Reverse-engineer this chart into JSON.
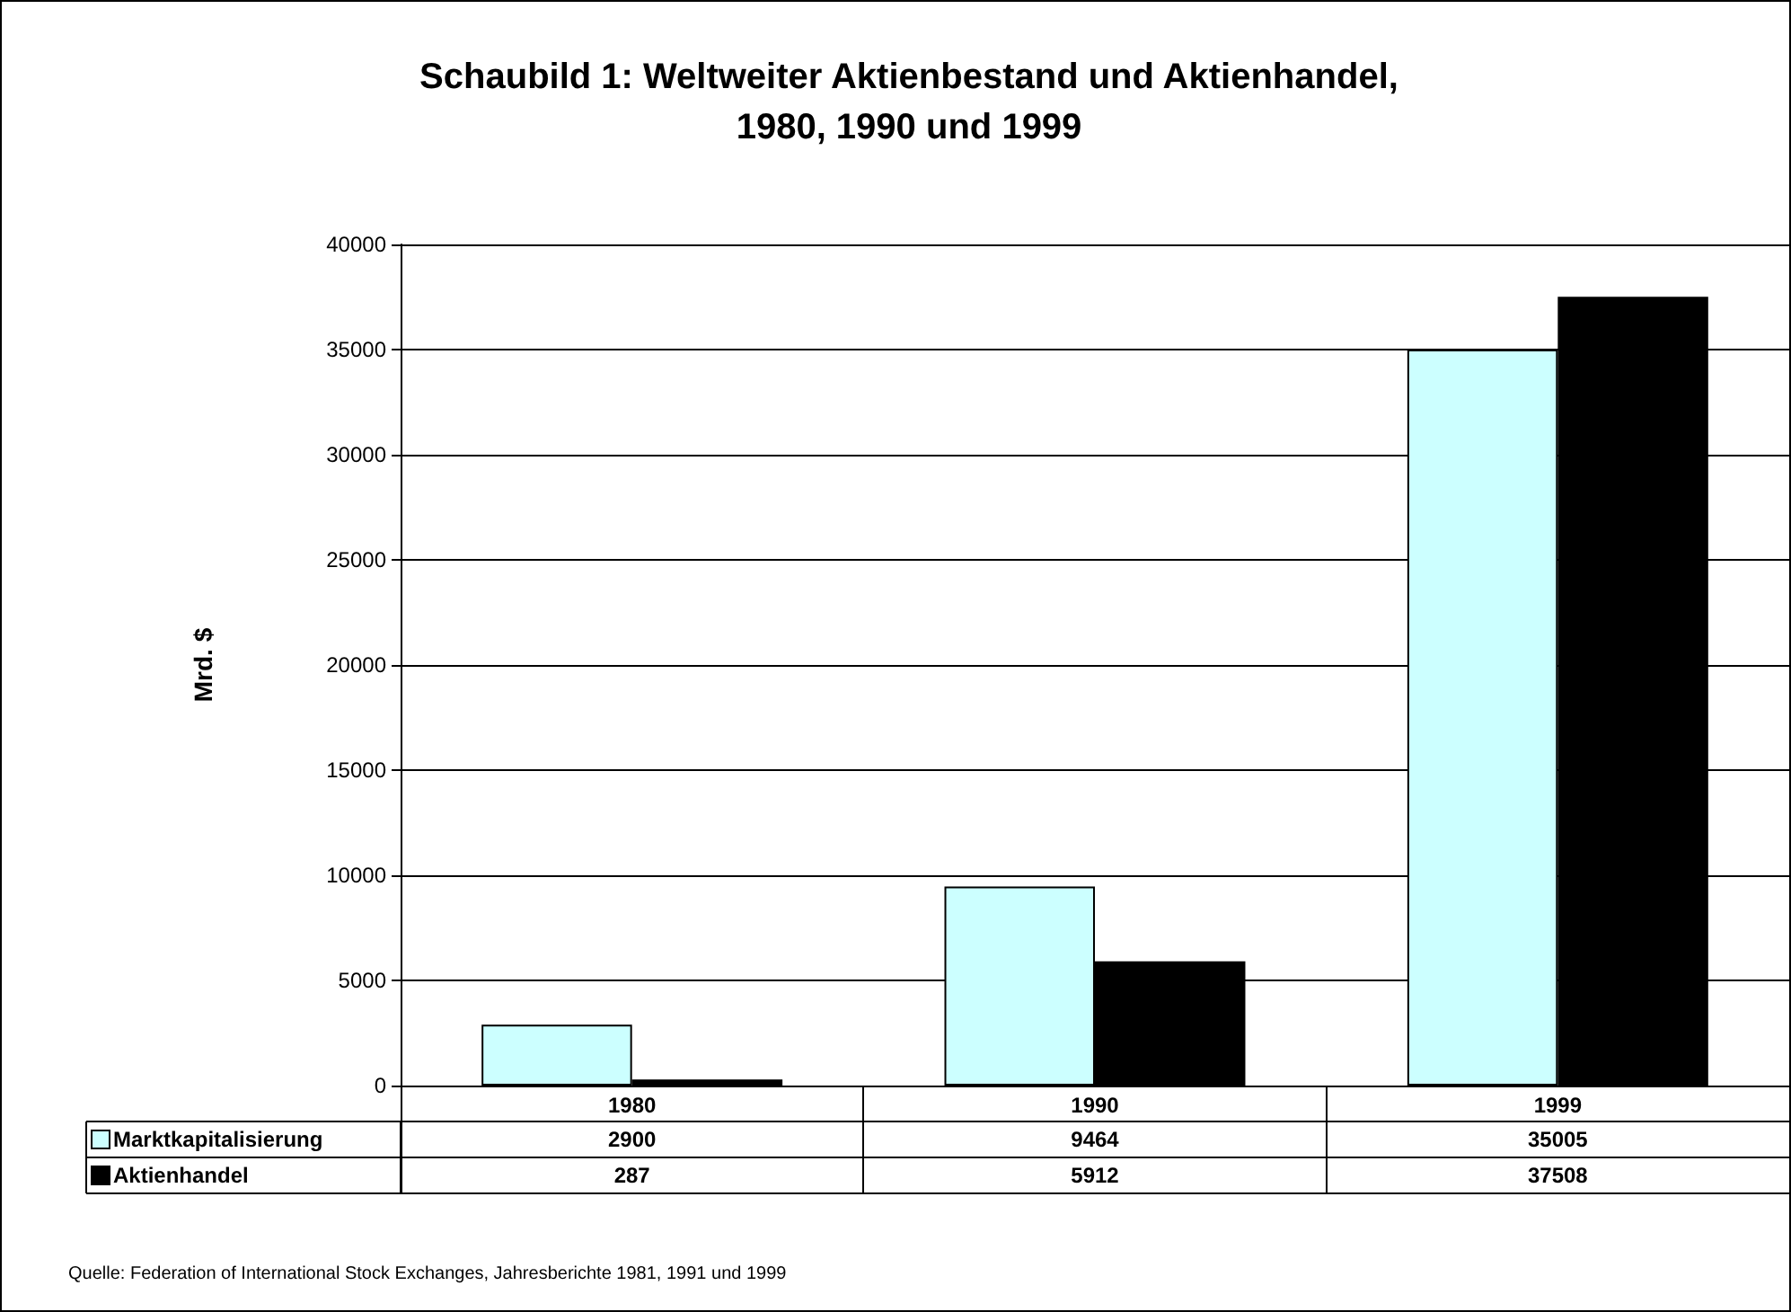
{
  "chart_data": {
    "type": "bar",
    "title": "Schaubild 1: Weltweiter Aktienbestand und Aktienhandel,\n1980, 1990 und 1999",
    "ylabel": "Mrd. $",
    "categories": [
      "1980",
      "1990",
      "1999"
    ],
    "series": [
      {
        "name": "Marktkapitalisierung",
        "color": "#ccffff",
        "values": [
          2900,
          9464,
          35005
        ]
      },
      {
        "name": "Aktienhandel",
        "color": "#000000",
        "values": [
          287,
          5912,
          37508
        ]
      }
    ],
    "ylim": [
      0,
      40000
    ],
    "yticks": [
      0,
      5000,
      10000,
      15000,
      20000,
      25000,
      30000,
      35000,
      40000
    ],
    "grid": "y",
    "legend": "bottom left",
    "data_labels": true,
    "annotations": [
      "Quelle: Federation of International Stock Exchanges, Jahresberichte 1981, 1991 und 1999"
    ]
  }
}
